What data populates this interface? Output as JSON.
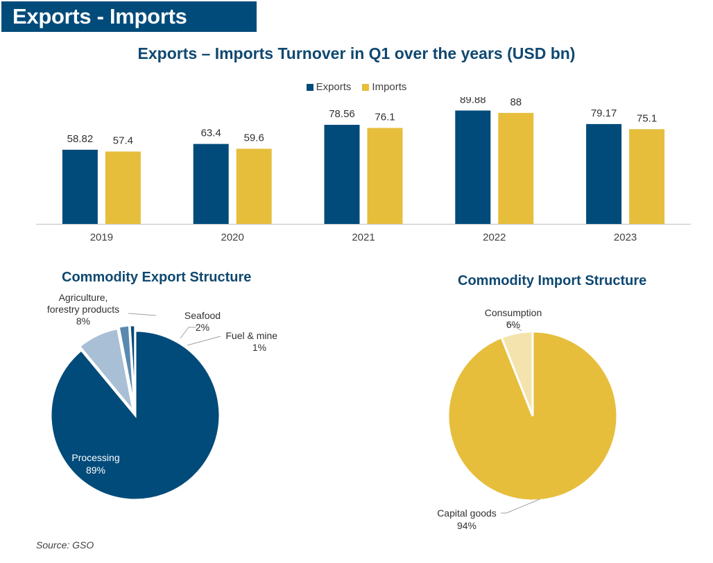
{
  "header": {
    "title": "Exports - Imports"
  },
  "colors": {
    "exports": "#004b7a",
    "imports": "#e6be3c",
    "banner": "#004b7a",
    "title": "#0f4870"
  },
  "chart_data": [
    {
      "type": "bar",
      "title": "Exports – Imports Turnover in Q1 over the years (USD bn)",
      "categories": [
        "2019",
        "2020",
        "2021",
        "2022",
        "2023"
      ],
      "series": [
        {
          "name": "Exports",
          "values": [
            58.82,
            63.4,
            78.56,
            89.88,
            79.17
          ]
        },
        {
          "name": "Imports",
          "values": [
            57.4,
            59.6,
            76.1,
            88,
            75.1
          ]
        }
      ],
      "ylim": [
        0,
        100
      ],
      "legend": "top-center",
      "grid": false
    },
    {
      "type": "pie",
      "title": "Commodity Export Structure",
      "slices": [
        {
          "label": "Processing",
          "value": 89,
          "label_text": "89%"
        },
        {
          "label": "Agriculture, forestry products",
          "value": 8,
          "label_text": "8%"
        },
        {
          "label": "Seafood",
          "value": 2,
          "label_text": "2%"
        },
        {
          "label": "Fuel & minerals",
          "value": 1,
          "label_text": "1%"
        }
      ]
    },
    {
      "type": "pie",
      "title": "Commodity Import Structure",
      "slices": [
        {
          "label": "Capital goods",
          "value": 94,
          "label_text": "94%"
        },
        {
          "label": "Consumption",
          "value": 6,
          "label_text": "6%"
        }
      ]
    }
  ],
  "export_labels": {
    "processing_1": "Processing",
    "agri_1": "Agriculture,",
    "agri_2": "forestry products",
    "seafood_1": "Seafood",
    "fuel_1": "Fuel & minerals"
  },
  "import_labels": {
    "capital_1": "Capital goods",
    "consumption_1": "Consumption"
  },
  "source": "Source: GSO"
}
